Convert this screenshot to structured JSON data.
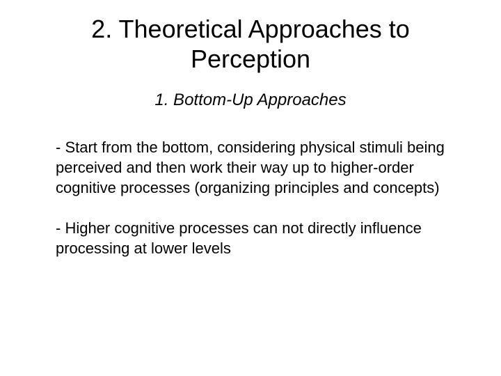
{
  "slide": {
    "title": "2. Theoretical Approaches to Perception",
    "subtitle": "1.   Bottom-Up Approaches",
    "paragraphs": [
      "- Start from the bottom, considering physical stimuli being perceived and then work their way up to higher-order cognitive processes (organizing principles and concepts)",
      "- Higher cognitive processes can not directly influence processing at lower levels"
    ]
  },
  "styling": {
    "background_color": "#ffffff",
    "text_color": "#000000",
    "title_fontsize": 36,
    "subtitle_fontsize": 24,
    "body_fontsize": 22,
    "font_family": "Arial"
  }
}
